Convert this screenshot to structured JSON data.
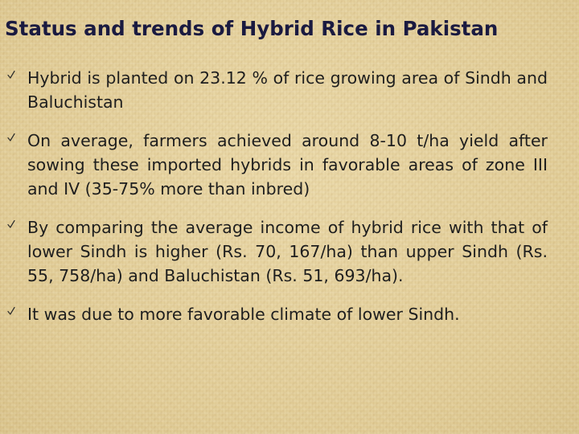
{
  "title": "Status and trends of Hybrid Rice in Pakistan",
  "bullets": [
    {
      "icon": "checkmark-icon",
      "text": "Hybrid is planted on 23.12 % of rice growing area of Sindh and Baluchistan"
    },
    {
      "icon": "checkmark-icon",
      "text": "On average, farmers achieved around 8-10 t/ha yield after sowing these imported hybrids in favorable areas of zone III and IV (35-75% more than inbred)"
    },
    {
      "icon": "checkmark-icon",
      "text": "By comparing the average income of hybrid rice with that of lower Sindh is higher (Rs. 70, 167/ha) than upper Sindh (Rs. 55, 758/ha) and Baluchistan (Rs. 51, 693/ha)."
    },
    {
      "icon": "checkmark-icon",
      "text": "It was due to more favorable climate of lower Sindh."
    }
  ]
}
